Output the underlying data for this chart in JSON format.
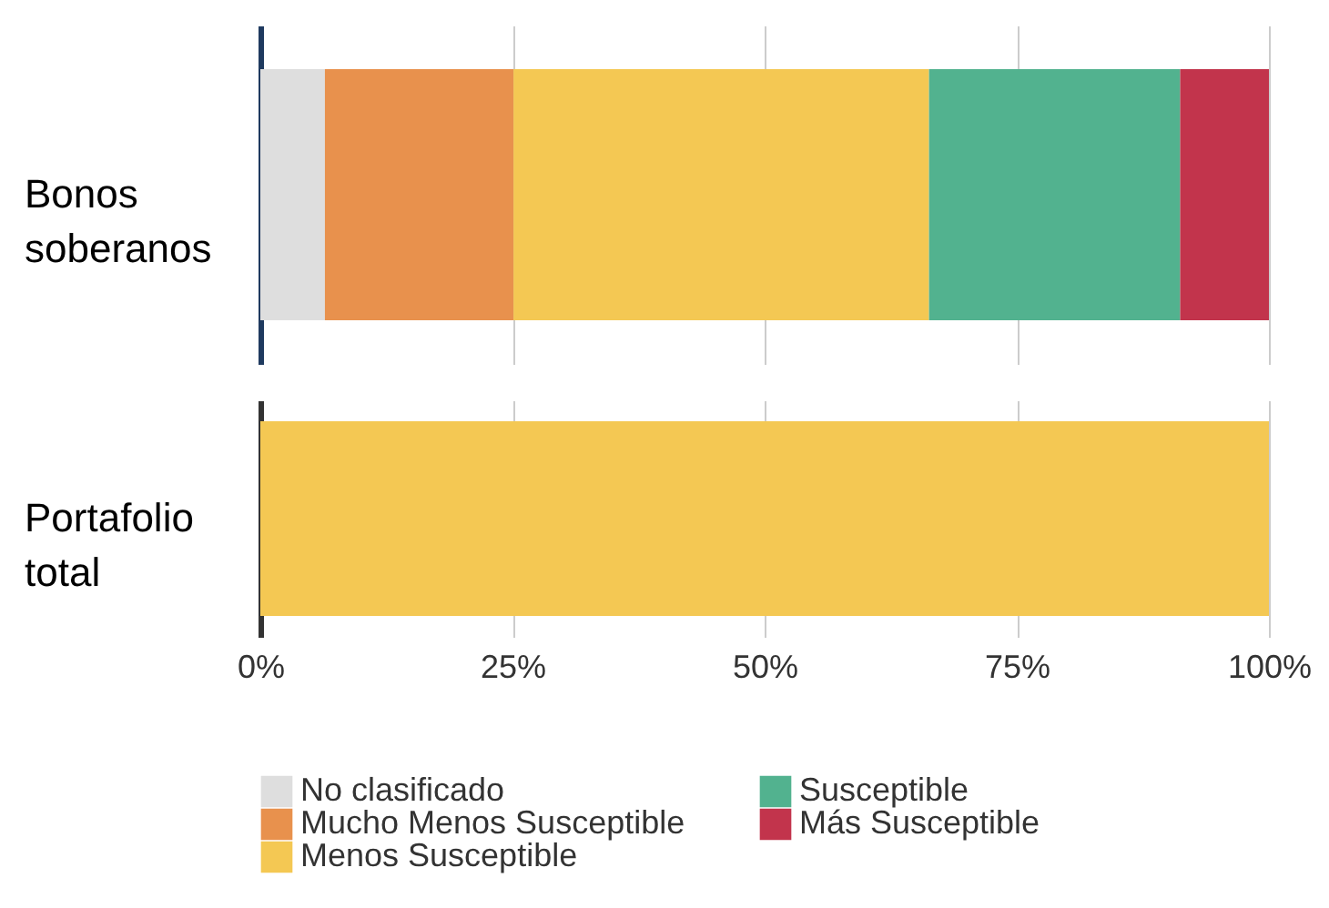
{
  "chart_data": [
    {
      "type": "bar",
      "orientation": "horizontal",
      "stacked": true,
      "categories": [
        "Bonos soberanos"
      ],
      "xlim": [
        0,
        100
      ],
      "xticks": [
        0,
        25,
        50,
        75,
        100
      ],
      "grid": "x",
      "tick_labels": "y",
      "legend": "bottom",
      "series": [
        {
          "name": "No clasificado",
          "color": "#dedede",
          "values": [
            6.4
          ]
        },
        {
          "name": "Mucho Menos Susceptible",
          "color": "#e8914d",
          "values": [
            18.7
          ]
        },
        {
          "name": "Menos Susceptible",
          "color": "#f4c853",
          "values": [
            41.2
          ]
        },
        {
          "name": "Susceptible",
          "color": "#52b28f",
          "values": [
            24.9
          ]
        },
        {
          "name": "Más Susceptible",
          "color": "#c2344c",
          "values": [
            8.8
          ]
        }
      ]
    },
    {
      "type": "bar",
      "orientation": "horizontal",
      "stacked": true,
      "categories": [
        "Portafolio total"
      ],
      "xlim": [
        0,
        100
      ],
      "xticks": [
        {
          "value": 0,
          "label": "0%"
        },
        {
          "value": 25,
          "label": "25%"
        },
        {
          "value": 50,
          "label": "50%"
        },
        {
          "value": 75,
          "label": "75%"
        },
        {
          "value": 100,
          "label": "100%"
        }
      ],
      "grid": "x",
      "series": [
        {
          "name": "Menos Susceptible",
          "color": "#f4c853",
          "values": [
            100
          ]
        }
      ]
    }
  ]
}
